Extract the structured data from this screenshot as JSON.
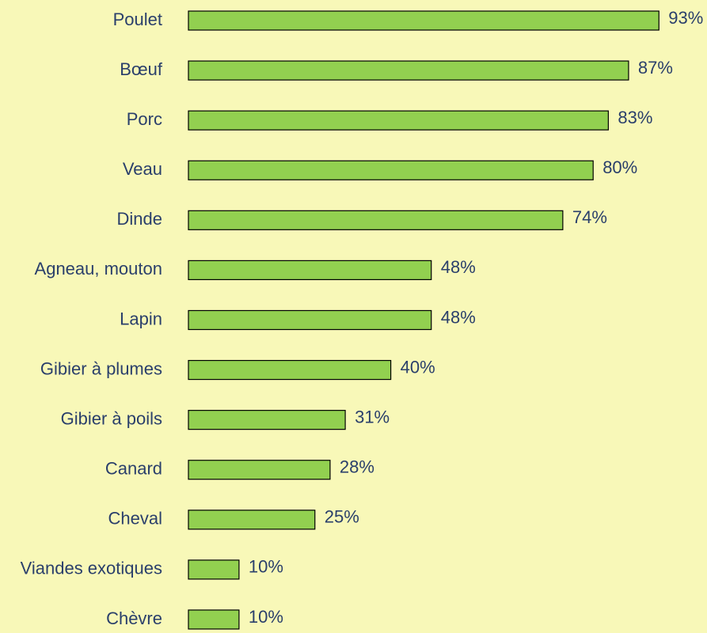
{
  "chart_data": {
    "type": "bar",
    "orientation": "horizontal",
    "categories": [
      "Poulet",
      "Bœuf",
      "Porc",
      "Veau",
      "Dinde",
      "Agneau, mouton",
      "Lapin",
      "Gibier à plumes",
      "Gibier à poils",
      "Canard",
      "Cheval",
      "Viandes exotiques",
      "Chèvre"
    ],
    "values": [
      93,
      87,
      83,
      80,
      74,
      48,
      48,
      40,
      31,
      28,
      25,
      10,
      10
    ],
    "value_labels": [
      "93%",
      "87%",
      "83%",
      "80%",
      "74%",
      "48%",
      "48%",
      "40%",
      "31%",
      "28%",
      "25%",
      "10%",
      "10%"
    ],
    "color": "#92d050"
  }
}
